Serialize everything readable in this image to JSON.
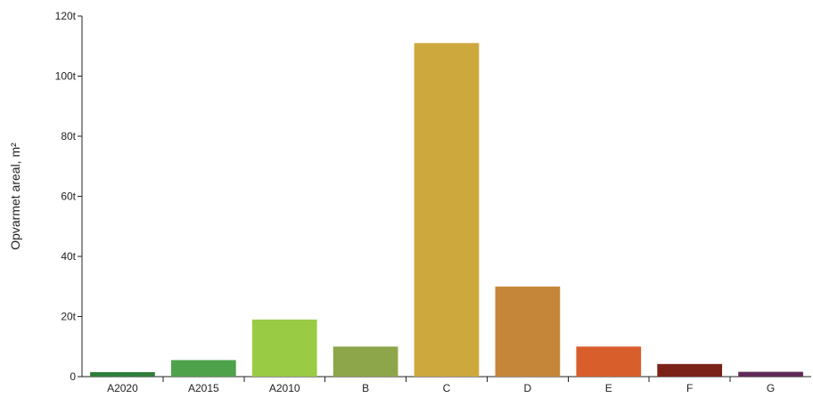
{
  "chart_data": {
    "type": "bar",
    "title": "",
    "xlabel": "",
    "ylabel": "Opvarmet areal, m²",
    "categories": [
      "A2020",
      "A2015",
      "A2010",
      "B",
      "C",
      "D",
      "E",
      "F",
      "G"
    ],
    "values": [
      1500,
      5500,
      19000,
      10000,
      111000,
      30000,
      10000,
      4200,
      1600
    ],
    "colors": [
      "#2f7d3a",
      "#4ea24a",
      "#9acb45",
      "#8ea64a",
      "#cda83c",
      "#c58639",
      "#d85e2c",
      "#7b2218",
      "#5e2a57"
    ],
    "ylim": [
      0,
      120000
    ],
    "yticks": [
      0,
      20000,
      40000,
      60000,
      80000,
      100000,
      120000
    ],
    "ytick_labels": [
      "0",
      "20t",
      "40t",
      "60t",
      "80t",
      "100t",
      "120t"
    ],
    "grid": false,
    "legend": "none"
  }
}
